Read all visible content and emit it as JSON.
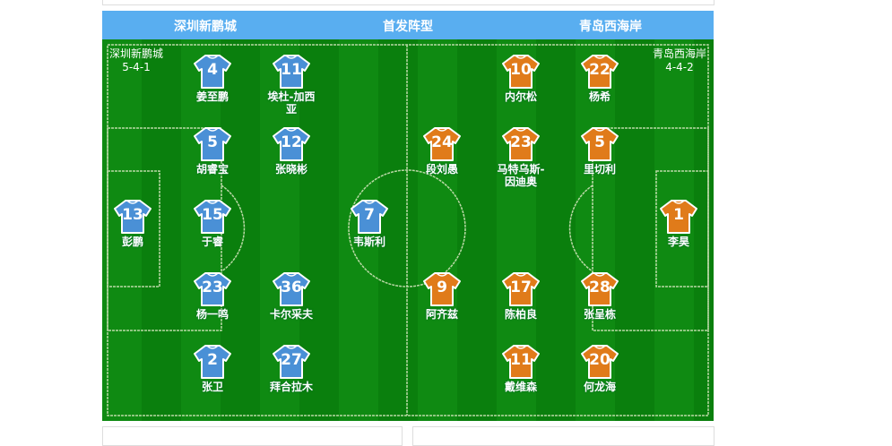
{
  "header": {
    "home": "深圳新鹏城",
    "title": "首发阵型",
    "away": "青岛西海岸"
  },
  "colors": {
    "header": "#59aef0",
    "home_shirt": "#4a90d6",
    "away_shirt": "#e07b1a",
    "pitch": "#0f8a12"
  },
  "home": {
    "name": "深圳新鹏城",
    "formation": "5-4-1",
    "players": [
      {
        "number": "4",
        "name": "姜至鹏"
      },
      {
        "number": "11",
        "name": "埃杜-加西亚"
      },
      {
        "number": "5",
        "name": "胡睿宝"
      },
      {
        "number": "12",
        "name": "张晓彬"
      },
      {
        "number": "13",
        "name": "彭鹏"
      },
      {
        "number": "15",
        "name": "于睿"
      },
      {
        "number": "7",
        "name": "韦斯利"
      },
      {
        "number": "23",
        "name": "杨一鸣"
      },
      {
        "number": "36",
        "name": "卡尔采夫"
      },
      {
        "number": "2",
        "name": "张卫"
      },
      {
        "number": "27",
        "name": "拜合拉木"
      }
    ]
  },
  "away": {
    "name": "青岛西海岸",
    "formation": "4-4-2",
    "players": [
      {
        "number": "10",
        "name": "内尔松"
      },
      {
        "number": "22",
        "name": "杨希"
      },
      {
        "number": "24",
        "name": "段刘愚"
      },
      {
        "number": "23",
        "name": "马特乌斯-因迪奥"
      },
      {
        "number": "5",
        "name": "里切利"
      },
      {
        "number": "1",
        "name": "李昊"
      },
      {
        "number": "9",
        "name": "阿齐兹"
      },
      {
        "number": "17",
        "name": "陈柏良"
      },
      {
        "number": "28",
        "name": "张呈栋"
      },
      {
        "number": "11",
        "name": "戴维森"
      },
      {
        "number": "20",
        "name": "何龙海"
      }
    ]
  }
}
